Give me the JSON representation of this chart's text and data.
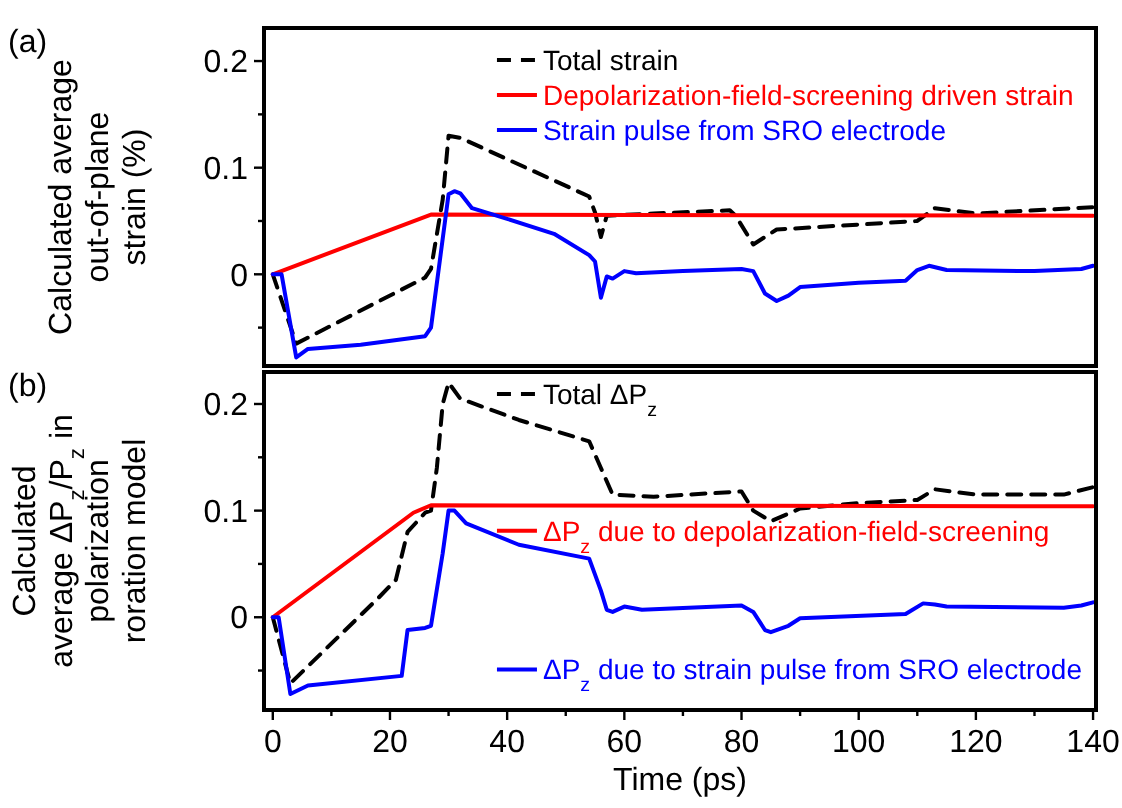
{
  "chart_data": [
    {
      "type": "line",
      "xlim": [
        -1.5,
        140.5
      ],
      "ylim": [
        -0.086,
        0.231
      ],
      "yticks": [
        {
          "value": -0.05,
          "label": null
        },
        0,
        {
          "value": 0.05,
          "label": null
        },
        0.1,
        {
          "value": 0.15,
          "label": null
        },
        0.2
      ],
      "tick_labels": "y",
      "ylabel": "Calculated average out-of-plane strain (%)",
      "legend": "top",
      "annotations": [
        "(a)"
      ],
      "series": [
        {
          "name": "Total strain",
          "color": "#000000",
          "line_style": "dashed",
          "x": [
            0,
            4,
            26,
            27,
            29,
            30,
            32,
            54,
            55,
            56,
            57,
            65,
            78,
            79,
            82,
            86,
            110,
            113,
            120,
            140
          ],
          "values": [
            0,
            -0.065,
            -0.003,
            0.005,
            0.07,
            0.13,
            0.128,
            0.073,
            0.058,
            0.035,
            0.055,
            0.057,
            0.06,
            0.055,
            0.028,
            0.042,
            0.05,
            0.062,
            0.057,
            0.063
          ]
        },
        {
          "name": "Depolarization-field-screening driven strain",
          "color": "#ff0000",
          "line_style": "solid",
          "x": [
            0,
            27,
            140
          ],
          "values": [
            0,
            0.056,
            0.055
          ]
        },
        {
          "name": "Strain pulse from SRO electrode",
          "color": "#0000ff",
          "line_style": "solid",
          "x": [
            0,
            1.5,
            4,
            6,
            15,
            26,
            27,
            30,
            31,
            32,
            34,
            40,
            48,
            54,
            55,
            56,
            57,
            58,
            60,
            62,
            70,
            80,
            82,
            84,
            86,
            88,
            90,
            100,
            108,
            110,
            112,
            115,
            130,
            138,
            140
          ],
          "values": [
            0,
            0,
            -0.078,
            -0.07,
            -0.066,
            -0.058,
            -0.05,
            0.075,
            0.078,
            0.076,
            0.062,
            0.052,
            0.038,
            0.018,
            0.012,
            -0.022,
            -0.002,
            -0.004,
            0.003,
            0.001,
            0.003,
            0.005,
            0.003,
            -0.018,
            -0.025,
            -0.02,
            -0.012,
            -0.008,
            -0.006,
            0.004,
            0.008,
            0.004,
            0.003,
            0.005,
            0.008
          ]
        }
      ]
    },
    {
      "type": "line",
      "xlim": [
        -1.5,
        140.5
      ],
      "ylim": [
        -0.087,
        0.23
      ],
      "xticks": [
        0,
        {
          "value": 10,
          "label": null
        },
        20,
        {
          "value": 30,
          "label": null
        },
        40,
        {
          "value": 50,
          "label": null
        },
        60,
        {
          "value": 70,
          "label": null
        },
        80,
        {
          "value": 90,
          "label": null
        },
        100,
        {
          "value": 110,
          "label": null
        },
        120,
        {
          "value": 130,
          "label": null
        },
        140
      ],
      "yticks": [
        {
          "value": -0.05,
          "label": null
        },
        0,
        {
          "value": 0.05,
          "label": null
        },
        0.1,
        {
          "value": 0.15,
          "label": null
        },
        0.2
      ],
      "xlabel": "Time (ps)",
      "legend": "right",
      "ylabel": "Calculated average ΔP$_{z}$/P$_{z}$ in polarization roration model",
      "annotations": [
        "(b)"
      ],
      "series": [
        {
          "name": "Total ΔP$_{z}$",
          "color": "#000000",
          "line_style": "dashed",
          "x": [
            0,
            3,
            18,
            21,
            23,
            26,
            27,
            28,
            29,
            30,
            32,
            42,
            54,
            56,
            58,
            65,
            80,
            82,
            85,
            90,
            100,
            110,
            113,
            120,
            135,
            140
          ],
          "values": [
            0,
            -0.062,
            0.018,
            0.035,
            0.08,
            0.098,
            0.1,
            0.14,
            0.2,
            0.22,
            0.205,
            0.185,
            0.165,
            0.14,
            0.115,
            0.113,
            0.118,
            0.1,
            0.09,
            0.102,
            0.107,
            0.11,
            0.12,
            0.115,
            0.115,
            0.122
          ]
        },
        {
          "name": "ΔP$_{z}$ due to depolarization-field-screening",
          "color": "#ff0000",
          "line_style": "solid",
          "x": [
            0,
            24,
            27,
            140
          ],
          "values": [
            0,
            0.098,
            0.105,
            0.104
          ]
        },
        {
          "name": "ΔP$_{z}$ due to strain pulse from SRO electrode",
          "color": "#0000ff",
          "line_style": "solid",
          "x": [
            0,
            1,
            3,
            6,
            22,
            23,
            26,
            27,
            29,
            30,
            31,
            33,
            42,
            54,
            56,
            57,
            58,
            60,
            63,
            80,
            82,
            84,
            85,
            88,
            90,
            108,
            111,
            113,
            115,
            135,
            138,
            140
          ],
          "values": [
            0,
            0,
            -0.072,
            -0.064,
            -0.055,
            -0.012,
            -0.01,
            -0.008,
            0.06,
            0.1,
            0.1,
            0.088,
            0.068,
            0.055,
            0.025,
            0.007,
            0.005,
            0.01,
            0.007,
            0.011,
            0.005,
            -0.012,
            -0.014,
            -0.008,
            -0.001,
            0.003,
            0.013,
            0.012,
            0.01,
            0.009,
            0.011,
            0.014
          ]
        }
      ]
    }
  ]
}
